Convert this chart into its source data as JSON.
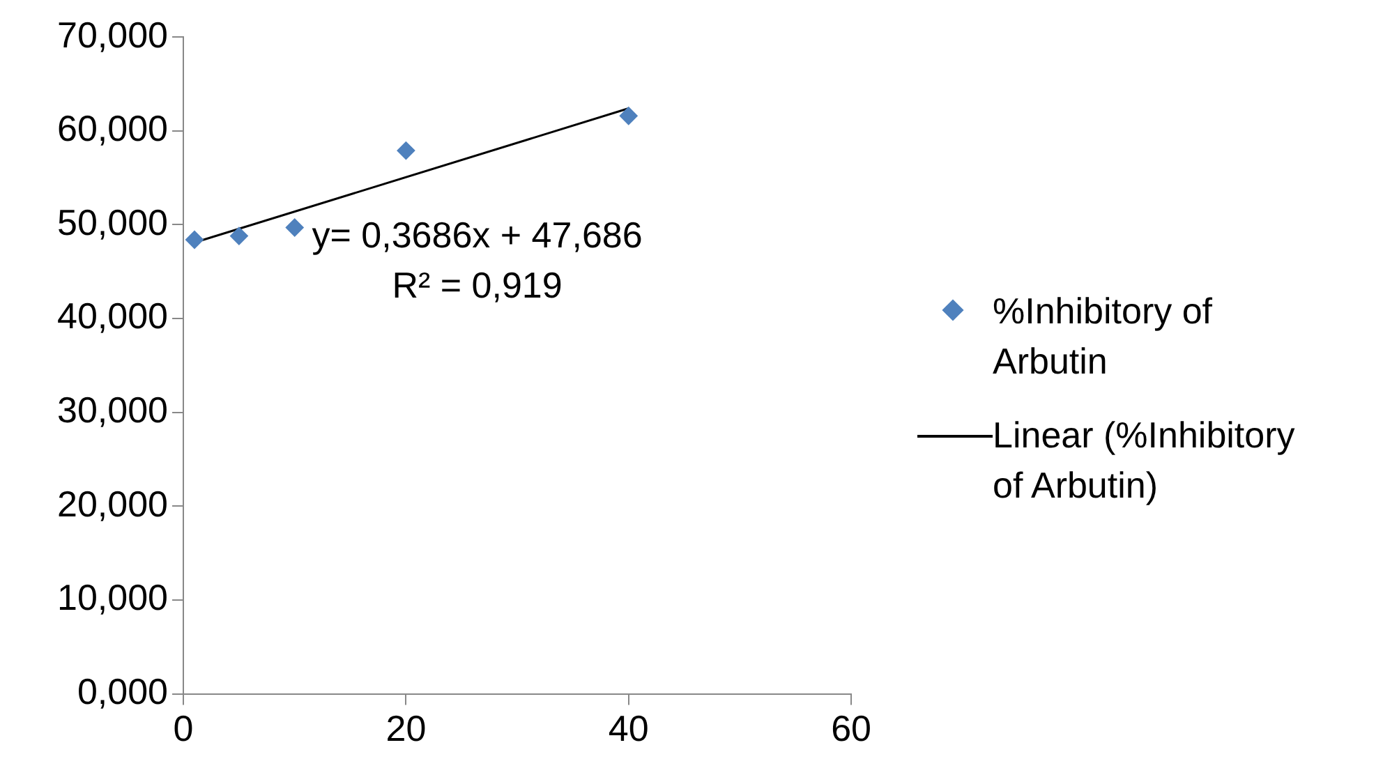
{
  "chart_data": {
    "type": "scatter",
    "series": [
      {
        "name": "%Inhibitory of Arbutin",
        "type": "scatter",
        "color": "#4f81bd",
        "marker": "diamond",
        "x": [
          1,
          5,
          10,
          20,
          40
        ],
        "values": [
          48.4,
          48.8,
          49.7,
          57.9,
          61.6
        ]
      },
      {
        "name": "Linear (%Inhibitory of Arbutin)",
        "type": "line",
        "color": "#000000",
        "marker": "none",
        "line_style": "solid",
        "x": [
          1,
          40
        ],
        "values": [
          48.1,
          62.4
        ]
      }
    ],
    "xlim": [
      0,
      60
    ],
    "xticks": [
      0,
      20,
      40,
      60
    ],
    "ylim": [
      0,
      70
    ],
    "yticks": [
      {
        "value": 0,
        "label": "0,000"
      },
      {
        "value": 10,
        "label": "10,000"
      },
      {
        "value": 20,
        "label": "20,000"
      },
      {
        "value": 30,
        "label": "30,000"
      },
      {
        "value": 40,
        "label": "40,000"
      },
      {
        "value": 50,
        "label": "50,000"
      },
      {
        "value": 60,
        "label": "60,000"
      },
      {
        "value": 70,
        "label": "70,000"
      }
    ],
    "annotations": [
      "y= 0,3686x + 47,686",
      "R² = 0,919"
    ],
    "grid": false,
    "legend": "right"
  }
}
